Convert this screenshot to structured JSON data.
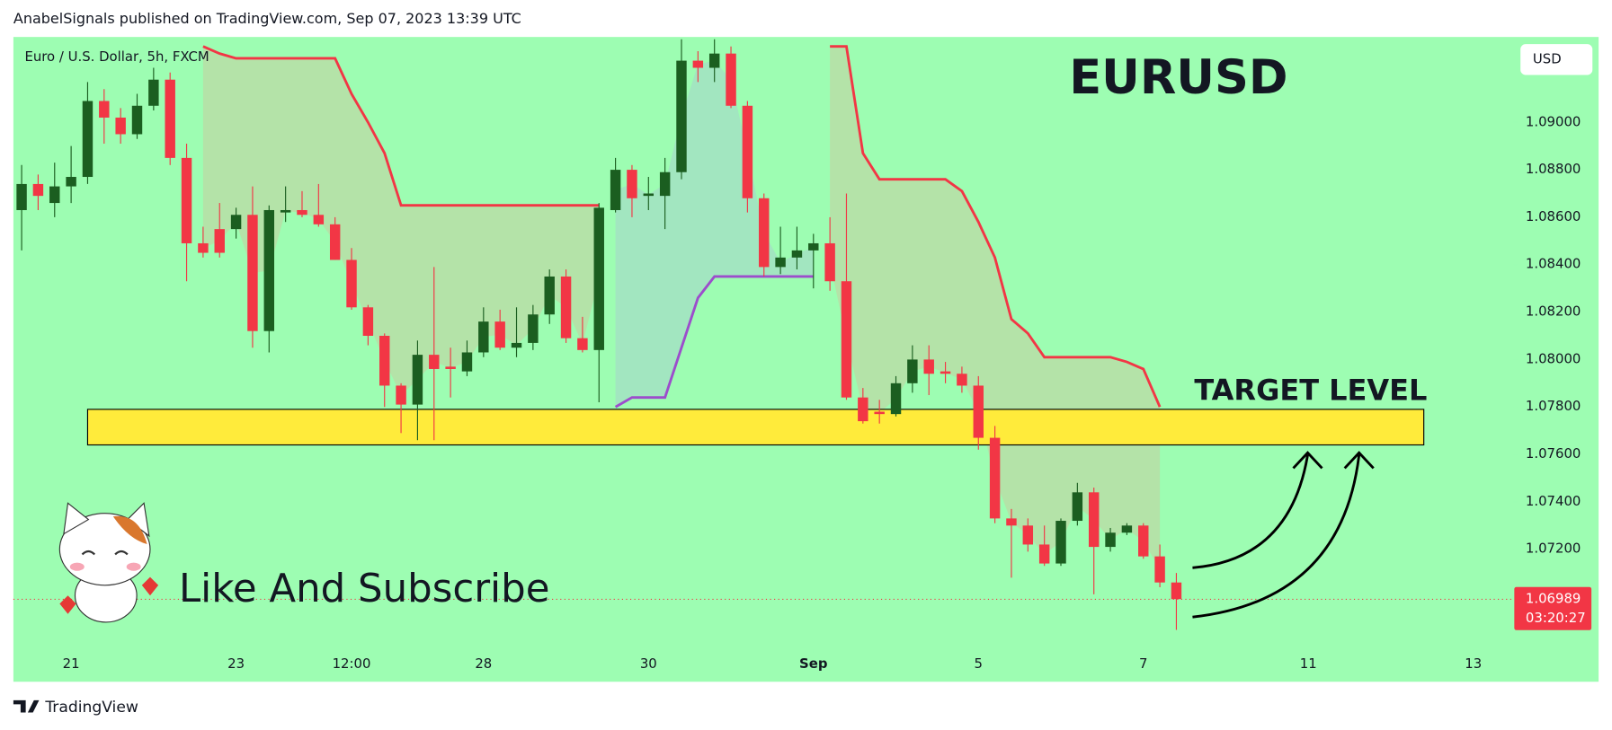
{
  "header": "AnabelSignals published on TradingView.com, Sep 07, 2023 13:39 UTC",
  "footer": "TradingView",
  "chart_data": {
    "type": "candlestick",
    "title": "EURUSD",
    "symbol": "Euro / U.S. Dollar, 5h, FXCM",
    "currency": "USD",
    "annotations": [
      "Like And Subscribe"
    ],
    "up_color": "#1b5e20",
    "down_color": "#f23645",
    "open": [
      1.0863,
      1.0874,
      1.0866,
      1.0873,
      1.0877,
      1.0909,
      1.0902,
      1.0895,
      1.0907,
      1.0918,
      1.0885,
      1.0849,
      1.0855,
      1.0855,
      1.0861,
      1.0812,
      1.0862,
      1.0863,
      1.0861,
      1.0857,
      1.0842,
      1.0822,
      1.081,
      1.0789,
      1.0781,
      1.0802,
      1.0797,
      1.0795,
      1.0803,
      1.0816,
      1.0805,
      1.0807,
      1.0819,
      1.0835,
      1.0809,
      1.0804,
      1.0863,
      1.088,
      1.0869,
      1.0869,
      1.0879,
      1.0926,
      1.0923,
      1.0929,
      1.0907,
      1.0868,
      1.0839,
      1.0843,
      1.0846,
      1.0849,
      1.0833,
      1.0784,
      1.0778,
      1.0777,
      1.079,
      1.08,
      1.0795,
      1.0794,
      1.0789,
      1.0767,
      1.0733,
      1.073,
      1.0722,
      1.0714,
      1.0732,
      1.0744,
      1.0721,
      1.0727,
      1.073,
      1.0717,
      1.0706
    ],
    "high": [
      1.0882,
      1.0878,
      1.0883,
      1.089,
      1.0917,
      1.0914,
      1.0906,
      1.0912,
      1.0923,
      1.0921,
      1.0891,
      1.0856,
      1.0866,
      1.0864,
      1.0873,
      1.0865,
      1.0873,
      1.0871,
      1.0874,
      1.086,
      1.0847,
      1.0823,
      1.0811,
      1.079,
      1.0808,
      1.0839,
      1.0805,
      1.0808,
      1.0822,
      1.0821,
      1.0822,
      1.0823,
      1.0838,
      1.0838,
      1.0818,
      1.0866,
      1.0885,
      1.0882,
      1.0877,
      1.0885,
      1.0935,
      1.093,
      1.0935,
      1.0932,
      1.0909,
      1.087,
      1.0856,
      1.0856,
      1.0853,
      1.086,
      1.087,
      1.0788,
      1.0783,
      1.0793,
      1.0806,
      1.0806,
      1.0799,
      1.0797,
      1.0793,
      1.0772,
      1.0737,
      1.0733,
      1.073,
      1.0733,
      1.0748,
      1.0746,
      1.0729,
      1.0731,
      1.0731,
      1.0722,
      1.071
    ],
    "low": [
      1.0846,
      1.0863,
      1.086,
      1.0866,
      1.0874,
      1.0891,
      1.0891,
      1.0893,
      1.0905,
      1.0882,
      1.0833,
      1.0843,
      1.0843,
      1.0851,
      1.0805,
      1.0803,
      1.0858,
      1.086,
      1.0856,
      1.0842,
      1.0821,
      1.0806,
      1.078,
      1.0769,
      1.0766,
      1.0766,
      1.0784,
      1.0793,
      1.0801,
      1.0804,
      1.0801,
      1.0804,
      1.0815,
      1.0807,
      1.0803,
      1.0782,
      1.0862,
      1.086,
      1.0863,
      1.0855,
      1.0876,
      1.0917,
      1.0917,
      1.0906,
      1.0862,
      1.0835,
      1.0836,
      1.0838,
      1.083,
      1.0829,
      1.0783,
      1.0773,
      1.0773,
      1.0776,
      1.0786,
      1.0785,
      1.079,
      1.0786,
      1.0762,
      1.0731,
      1.0708,
      1.0719,
      1.0713,
      1.0713,
      1.073,
      1.0701,
      1.0719,
      1.0726,
      1.0716,
      1.0704,
      1.0686
    ],
    "close": [
      1.0874,
      1.0869,
      1.0873,
      1.0877,
      1.0909,
      1.0902,
      1.0895,
      1.0907,
      1.0918,
      1.0885,
      1.0849,
      1.0845,
      1.0845,
      1.0861,
      1.0812,
      1.0863,
      1.0863,
      1.0861,
      1.0857,
      1.0842,
      1.0822,
      1.081,
      1.0789,
      1.0781,
      1.0802,
      1.0796,
      1.0796,
      1.0803,
      1.0816,
      1.0805,
      1.0807,
      1.0819,
      1.0835,
      1.0809,
      1.0804,
      1.0864,
      1.088,
      1.0868,
      1.087,
      1.0879,
      1.0926,
      1.0923,
      1.0929,
      1.0907,
      1.0868,
      1.0839,
      1.0843,
      1.0846,
      1.0849,
      1.0833,
      1.0784,
      1.0774,
      1.0777,
      1.079,
      1.08,
      1.0794,
      1.0794,
      1.0789,
      1.0767,
      1.0733,
      1.073,
      1.0722,
      1.0714,
      1.0732,
      1.0744,
      1.0721,
      1.0727,
      1.073,
      1.0717,
      1.0706,
      1.0699
    ],
    "overlays": [
      {
        "color": "#f23645",
        "fill": "#b8dea6",
        "values": [
          null,
          null,
          null,
          null,
          null,
          null,
          null,
          null,
          null,
          null,
          null,
          1.0932,
          1.0929,
          1.0927,
          1.0927,
          1.0927,
          1.0927,
          1.0927,
          1.0927,
          1.0927,
          1.0912,
          1.09,
          1.0887,
          1.0865,
          1.0865,
          1.0865,
          1.0865,
          1.0865,
          1.0865,
          1.0865,
          1.0865,
          1.0865,
          1.0865,
          1.0865,
          1.0865,
          1.0865,
          null,
          null,
          null,
          null,
          null,
          null,
          null,
          null,
          null,
          null,
          null,
          null,
          null,
          1.0932,
          1.0932,
          1.0887,
          1.0876,
          1.0876,
          1.0876,
          1.0876,
          1.0876,
          1.0871,
          1.0858,
          1.0843,
          1.0817,
          1.0811,
          1.0801,
          1.0801,
          1.0801,
          1.0801,
          1.0801,
          1.0799,
          1.0796,
          1.078,
          null
        ]
      },
      {
        "color": "#9c4dcc",
        "fill": "#a3e2c2",
        "values": [
          null,
          null,
          null,
          null,
          null,
          null,
          null,
          null,
          null,
          null,
          null,
          null,
          null,
          null,
          null,
          null,
          null,
          null,
          null,
          null,
          null,
          null,
          null,
          null,
          null,
          null,
          null,
          null,
          null,
          null,
          null,
          null,
          null,
          null,
          null,
          null,
          1.078,
          1.0784,
          1.0784,
          1.0784,
          1.0805,
          1.0826,
          1.0835,
          1.0835,
          1.0835,
          1.0835,
          1.0835,
          1.0835,
          1.0835,
          null,
          null,
          null,
          null,
          null,
          null,
          null,
          null,
          null,
          null,
          null,
          null,
          null,
          null,
          null,
          null,
          null,
          null,
          null,
          null,
          null,
          null
        ]
      }
    ],
    "target_zone": {
      "label": "TARGET LEVEL",
      "ylim": [
        1.0764,
        1.0779
      ],
      "xlim": [
        4,
        85
      ],
      "color": "#ffeb3b"
    },
    "last_price": {
      "value": 1.06989,
      "label": "1.06989",
      "countdown": "03:20:27",
      "color": "#f23645"
    },
    "xlim": [
      -0.5,
      90.3
    ],
    "xticks": [
      {
        "value": 3,
        "label": "21"
      },
      {
        "value": 13,
        "label": "23"
      },
      {
        "value": 20,
        "label": "12:00"
      },
      {
        "value": 28,
        "label": "28"
      },
      {
        "value": 38,
        "label": "30"
      },
      {
        "value": 48,
        "label": "Sep"
      },
      {
        "value": 58,
        "label": "5"
      },
      {
        "value": 68,
        "label": "7"
      },
      {
        "value": 78,
        "label": "11"
      },
      {
        "value": 88,
        "label": "13"
      }
    ],
    "ylim": [
      1.0678,
      1.0936
    ],
    "yticks": [
      {
        "value": 1.072,
        "label": "1.07200"
      },
      {
        "value": 1.074,
        "label": "1.07400"
      },
      {
        "value": 1.076,
        "label": "1.07600"
      },
      {
        "value": 1.078,
        "label": "1.07800"
      },
      {
        "value": 1.08,
        "label": "1.08000"
      },
      {
        "value": 1.082,
        "label": "1.08200"
      },
      {
        "value": 1.084,
        "label": "1.08400"
      },
      {
        "value": 1.086,
        "label": "1.08600"
      },
      {
        "value": 1.088,
        "label": "1.08800"
      },
      {
        "value": 1.09,
        "label": "1.09000"
      }
    ]
  }
}
